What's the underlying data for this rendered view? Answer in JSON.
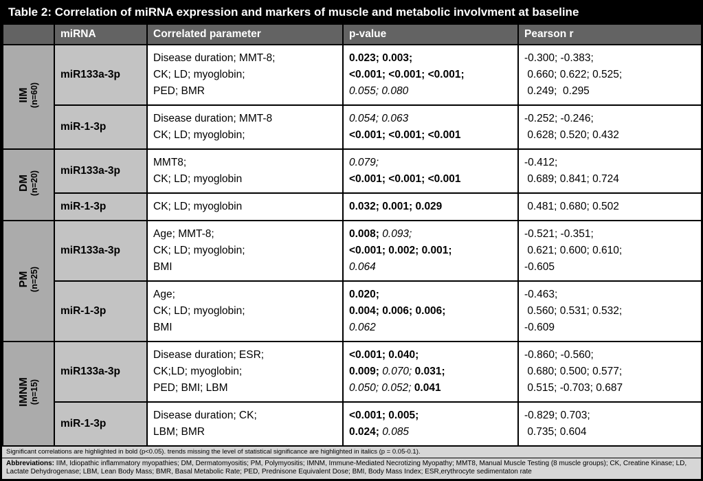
{
  "title": "Table 2: Correlation of miRNA expression and markers of muscle and metabolic involvment at baseline",
  "header": {
    "mirna": "miRNA",
    "parameter": "Correlated parameter",
    "pvalue": "p-value",
    "pearson": "Pearson r"
  },
  "groups": [
    {
      "label": "IIM",
      "n": "(n=60)",
      "rows": [
        {
          "mirna": "miR133a-3p",
          "parameters": [
            "Disease duration; MMT-8;",
            "CK; LD; myoglobin;",
            "PED; BMR"
          ],
          "pvalues": [
            [
              {
                "t": "0.023; 0.003;",
                "s": "b"
              }
            ],
            [
              {
                "t": "<0.001; <0.001; <0.001;",
                "s": "b"
              }
            ],
            [
              {
                "t": "0.055; 0.080",
                "s": "i"
              }
            ]
          ],
          "pearson": [
            "-0.300; -0.383;",
            " 0.660; 0.622; 0.525;",
            " 0.249;  0.295"
          ]
        },
        {
          "mirna": "miR-1-3p",
          "parameters": [
            "Disease duration; MMT-8",
            "CK; LD; myoglobin;"
          ],
          "pvalues": [
            [
              {
                "t": "0.054; 0.063",
                "s": "i"
              }
            ],
            [
              {
                "t": "<0.001; <0.001; <0.001",
                "s": "b"
              }
            ]
          ],
          "pearson": [
            "-0.252; -0.246;",
            " 0.628; 0.520; 0.432"
          ]
        }
      ]
    },
    {
      "label": "DM",
      "n": "(n=20)",
      "rows": [
        {
          "mirna": "miR133a-3p",
          "parameters": [
            "MMT8;",
            "CK; LD; myoglobin"
          ],
          "pvalues": [
            [
              {
                "t": "0.079;",
                "s": "i"
              }
            ],
            [
              {
                "t": "<0.001; <0.001; <0.001",
                "s": "b"
              }
            ]
          ],
          "pearson": [
            "-0.412;",
            " 0.689; 0.841; 0.724"
          ]
        },
        {
          "mirna": "miR-1-3p",
          "parameters": [
            "CK; LD; myoglobin"
          ],
          "pvalues": [
            [
              {
                "t": "0.032; 0.001; 0.029",
                "s": "b"
              }
            ]
          ],
          "pearson": [
            " 0.481; 0.680; 0.502"
          ]
        }
      ]
    },
    {
      "label": "PM",
      "n": "(n=25)",
      "rows": [
        {
          "mirna": "miR133a-3p",
          "parameters": [
            "Age; MMT-8;",
            "CK; LD; myoglobin;",
            "BMI"
          ],
          "pvalues": [
            [
              {
                "t": "0.008; ",
                "s": "b"
              },
              {
                "t": "0.093;",
                "s": "i"
              }
            ],
            [
              {
                "t": "<0.001; 0.002; 0.001;",
                "s": "b"
              }
            ],
            [
              {
                "t": "0.064",
                "s": "i"
              }
            ]
          ],
          "pearson": [
            "-0.521; -0.351;",
            " 0.621; 0.600; 0.610;",
            "-0.605"
          ]
        },
        {
          "mirna": "miR-1-3p",
          "parameters": [
            "Age;",
            "CK; LD; myoglobin;",
            "BMI"
          ],
          "pvalues": [
            [
              {
                "t": "0.020;",
                "s": "b"
              }
            ],
            [
              {
                "t": "0.004; 0.006; 0.006;",
                "s": "b"
              }
            ],
            [
              {
                "t": "0.062",
                "s": "i"
              }
            ]
          ],
          "pearson": [
            "-0.463;",
            " 0.560; 0.531; 0.532;",
            "-0.609"
          ]
        }
      ]
    },
    {
      "label": "IMNM",
      "n": "(n=15)",
      "rows": [
        {
          "mirna": "miR133a-3p",
          "parameters": [
            "Disease duration; ESR;",
            "CK;LD; myoglobin;",
            "PED; BMI; LBM"
          ],
          "pvalues": [
            [
              {
                "t": "<0.001; 0.040;",
                "s": "b"
              }
            ],
            [
              {
                "t": "0.009; ",
                "s": "b"
              },
              {
                "t": "0.070; ",
                "s": "i"
              },
              {
                "t": "0.031;",
                "s": "b"
              }
            ],
            [
              {
                "t": "0.050; 0.052; ",
                "s": "i"
              },
              {
                "t": "0.041",
                "s": "b"
              }
            ]
          ],
          "pearson": [
            "-0.860; -0.560;",
            " 0.680; 0.500; 0.577;",
            " 0.515; -0.703; 0.687"
          ]
        },
        {
          "mirna": "miR-1-3p",
          "parameters": [
            "Disease duration; CK;",
            "LBM; BMR"
          ],
          "pvalues": [
            [
              {
                "t": "<0.001; 0.005;",
                "s": "b"
              }
            ],
            [
              {
                "t": "0.024; ",
                "s": "b"
              },
              {
                "t": "0.085",
                "s": "i"
              }
            ]
          ],
          "pearson": [
            "-0.829; 0.703;",
            " 0.735; 0.604"
          ]
        }
      ]
    }
  ],
  "footnotes": {
    "significance": "Significant correlations are highlighted in bold (p<0.05). trends missing the level of statistical significance are highlighted in italics (p = 0.05-0.1).",
    "abbreviations_label": "Abbreviations:",
    "abbreviations_text": " IIM, Idiopathic inflammatory myopathies; DM, Dermatomyositis; PM, Polymyositis; IMNM, Immune-Mediated Necrotizing Myopathy; MMT8, Manual Muscle Testing (8 muscle groups); CK, Creatine Kinase; LD, Lactate Dehydrogenase; LBM, Lean Body Mass; BMR, Basal Metabolic Rate; PED, Prednisone Equivalent Dose; BMI, Body Mass Index; ESR,erythrocyte sedimentaton rate"
  },
  "colors": {
    "title_bg": "#000000",
    "header_bg": "#636363",
    "group_bg": "#ababab",
    "mirna_bg": "#c3c3c3",
    "footer_bg": "#d6d6d6",
    "border": "#000000"
  }
}
